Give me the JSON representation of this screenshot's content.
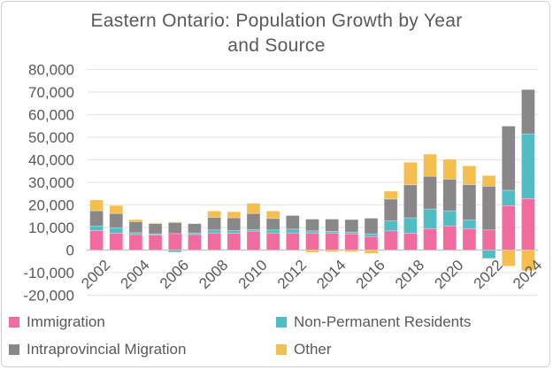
{
  "chart_data": {
    "type": "bar",
    "stacked": true,
    "title": "Eastern Ontario: Population Growth by Year and Source",
    "title_lines": [
      "Eastern Ontario: Population Growth by Year",
      "and Source"
    ],
    "xlabel": "",
    "ylabel": "",
    "ylim": [
      -20000,
      80000
    ],
    "yticks": [
      -20000,
      -10000,
      0,
      10000,
      20000,
      30000,
      40000,
      50000,
      60000,
      70000,
      80000
    ],
    "ytick_labels": [
      "-20,000",
      "-10,000",
      "0",
      "10,000",
      "20,000",
      "30,000",
      "40,000",
      "50,000",
      "60,000",
      "70,000",
      "80,000"
    ],
    "categories": [
      "2002",
      "2003",
      "2004",
      "2005",
      "2006",
      "2007",
      "2008",
      "2009",
      "2010",
      "2011",
      "2012",
      "2013",
      "2014",
      "2015",
      "2016",
      "2017",
      "2018",
      "2019",
      "2020",
      "2021",
      "2022",
      "2023",
      "2024"
    ],
    "xtick_labels": [
      "2002",
      "2004",
      "2006",
      "2008",
      "2010",
      "2012",
      "2014",
      "2016",
      "2018",
      "2020",
      "2022",
      "2024"
    ],
    "grid": true,
    "legend_position": "bottom",
    "series": [
      {
        "name": "Immigration",
        "color": "#F06B9E",
        "values": [
          8700,
          7500,
          6900,
          6800,
          7300,
          6900,
          7600,
          7500,
          8400,
          7600,
          7600,
          7600,
          7600,
          7200,
          6000,
          8500,
          7500,
          9500,
          10700,
          9500,
          8900,
          19700,
          22800
        ]
      },
      {
        "name": "Non-Permanent Residents",
        "color": "#4FBDC3",
        "values": [
          1900,
          2400,
          800,
          400,
          -900,
          700,
          1300,
          1100,
          700,
          1300,
          1700,
          900,
          700,
          800,
          1200,
          4400,
          6800,
          8700,
          6700,
          3800,
          -3700,
          6800,
          28700
        ]
      },
      {
        "name": "Intraprovincial Migration",
        "color": "#8A8788",
        "values": [
          6800,
          6300,
          4900,
          4500,
          4900,
          4100,
          5600,
          5700,
          7100,
          5100,
          6000,
          5200,
          5400,
          5500,
          6900,
          9700,
          14600,
          14500,
          14000,
          15700,
          19400,
          28400,
          19600
        ]
      },
      {
        "name": "Other",
        "color": "#F5BF4F",
        "values": [
          4800,
          3500,
          900,
          400,
          300,
          0,
          2800,
          2700,
          4500,
          3300,
          0,
          -1000,
          -800,
          -800,
          -1500,
          3500,
          10000,
          9800,
          8800,
          8300,
          4700,
          -7100,
          -9100
        ]
      }
    ],
    "legend_order": [
      "Immigration",
      "Non-Permanent Residents",
      "Intraprovincial Migration",
      "Other"
    ]
  }
}
